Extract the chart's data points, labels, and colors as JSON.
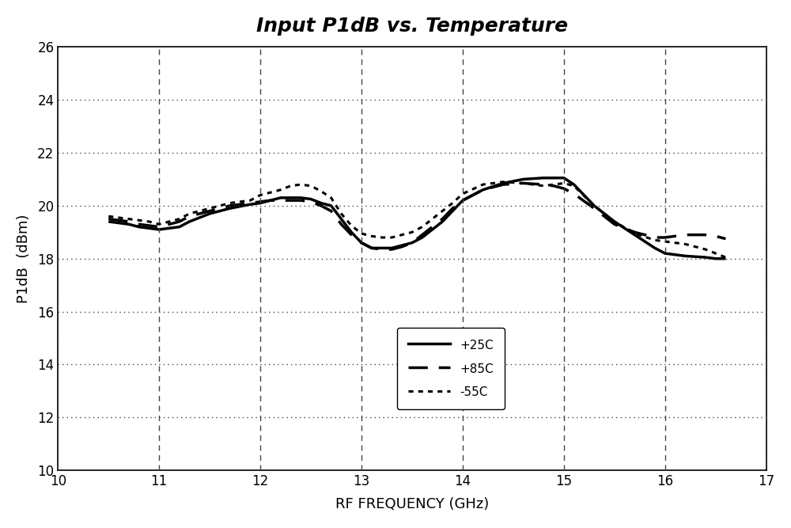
{
  "title": "Input P1dB vs. Temperature",
  "xlabel": "RF FREQUENCY (GHz)",
  "ylabel": "P1dB  (dBm)",
  "xlim": [
    10,
    17
  ],
  "ylim": [
    10,
    26
  ],
  "xticks": [
    10,
    11,
    12,
    13,
    14,
    15,
    16,
    17
  ],
  "yticks": [
    10,
    12,
    14,
    16,
    18,
    20,
    22,
    24,
    26
  ],
  "background_color": "#ffffff",
  "line_color": "#000000",
  "fig_bg": "#e8e8e8",
  "series": {
    "p25c": {
      "label": "+25C",
      "linestyle": "solid",
      "linewidth": 2.5,
      "x": [
        10.5,
        10.6,
        10.7,
        10.8,
        10.9,
        11.0,
        11.1,
        11.2,
        11.3,
        11.5,
        11.7,
        11.9,
        12.0,
        12.1,
        12.2,
        12.3,
        12.4,
        12.5,
        12.6,
        12.7,
        12.8,
        12.9,
        13.0,
        13.1,
        13.2,
        13.3,
        13.4,
        13.5,
        13.6,
        13.7,
        13.8,
        13.9,
        14.0,
        14.2,
        14.4,
        14.6,
        14.8,
        14.9,
        15.0,
        15.1,
        15.3,
        15.5,
        15.7,
        15.9,
        16.0,
        16.2,
        16.4,
        16.5,
        16.6
      ],
      "y": [
        19.4,
        19.35,
        19.3,
        19.2,
        19.15,
        19.1,
        19.15,
        19.2,
        19.4,
        19.7,
        19.9,
        20.05,
        20.1,
        20.2,
        20.3,
        20.3,
        20.3,
        20.25,
        20.1,
        20.0,
        19.5,
        19.0,
        18.6,
        18.4,
        18.4,
        18.4,
        18.5,
        18.6,
        18.8,
        19.1,
        19.4,
        19.8,
        20.2,
        20.6,
        20.85,
        21.0,
        21.05,
        21.05,
        21.05,
        20.8,
        20.0,
        19.4,
        18.9,
        18.4,
        18.2,
        18.1,
        18.05,
        18.0,
        18.0
      ]
    },
    "p85c": {
      "label": "+85C",
      "linestyle": "dashed",
      "linewidth": 2.5,
      "x": [
        10.5,
        10.6,
        10.7,
        10.8,
        10.9,
        11.0,
        11.1,
        11.2,
        11.3,
        11.5,
        11.7,
        11.9,
        12.0,
        12.1,
        12.2,
        12.3,
        12.4,
        12.5,
        12.6,
        12.7,
        12.8,
        12.9,
        13.0,
        13.1,
        13.2,
        13.3,
        13.4,
        13.5,
        13.6,
        13.7,
        13.8,
        13.9,
        14.0,
        14.2,
        14.4,
        14.6,
        14.8,
        14.9,
        15.0,
        15.1,
        15.3,
        15.5,
        15.7,
        15.9,
        16.0,
        16.2,
        16.4,
        16.5,
        16.6
      ],
      "y": [
        19.5,
        19.45,
        19.4,
        19.3,
        19.25,
        19.2,
        19.3,
        19.4,
        19.6,
        19.8,
        20.0,
        20.1,
        20.15,
        20.2,
        20.2,
        20.2,
        20.2,
        20.15,
        20.0,
        19.8,
        19.3,
        18.9,
        18.6,
        18.4,
        18.35,
        18.35,
        18.45,
        18.6,
        18.9,
        19.2,
        19.5,
        19.9,
        20.2,
        20.6,
        20.8,
        20.85,
        20.8,
        20.75,
        20.65,
        20.45,
        19.9,
        19.3,
        19.0,
        18.8,
        18.8,
        18.9,
        18.9,
        18.85,
        18.75
      ]
    },
    "m55c": {
      "label": "-55C",
      "linestyle": "dotted",
      "linewidth": 2.2,
      "x": [
        10.5,
        10.6,
        10.7,
        10.8,
        10.9,
        11.0,
        11.1,
        11.2,
        11.3,
        11.5,
        11.7,
        11.9,
        12.0,
        12.1,
        12.2,
        12.3,
        12.4,
        12.5,
        12.6,
        12.7,
        12.8,
        12.9,
        13.0,
        13.1,
        13.2,
        13.3,
        13.4,
        13.5,
        13.6,
        13.7,
        13.8,
        13.9,
        14.0,
        14.2,
        14.4,
        14.6,
        14.8,
        14.9,
        15.0,
        15.1,
        15.3,
        15.5,
        15.7,
        15.9,
        16.0,
        16.2,
        16.4,
        16.5,
        16.6
      ],
      "y": [
        19.6,
        19.55,
        19.5,
        19.45,
        19.4,
        19.3,
        19.4,
        19.5,
        19.7,
        19.9,
        20.1,
        20.2,
        20.4,
        20.5,
        20.6,
        20.75,
        20.8,
        20.75,
        20.55,
        20.3,
        19.7,
        19.25,
        18.95,
        18.85,
        18.8,
        18.8,
        18.9,
        19.0,
        19.2,
        19.5,
        19.8,
        20.1,
        20.45,
        20.8,
        20.9,
        20.85,
        20.75,
        20.8,
        20.85,
        20.75,
        20.0,
        19.4,
        18.95,
        18.7,
        18.65,
        18.55,
        18.35,
        18.2,
        18.05
      ]
    }
  }
}
